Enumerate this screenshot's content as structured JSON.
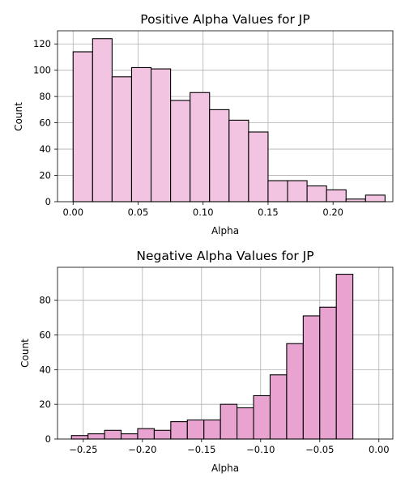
{
  "chart_data": [
    {
      "type": "bar",
      "title": "Positive Alpha Values for JP",
      "xlabel": "Alpha",
      "ylabel": "Count",
      "bar_color": "#f2c4e1",
      "xlim": [
        -0.012,
        0.246
      ],
      "ylim": [
        0,
        130
      ],
      "xticks": [
        0.0,
        0.05,
        0.1,
        0.15,
        0.2
      ],
      "xtick_labels": [
        "0.00",
        "0.05",
        "0.10",
        "0.15",
        "0.20"
      ],
      "yticks": [
        0,
        20,
        40,
        60,
        80,
        100,
        120
      ],
      "ytick_labels": [
        "0",
        "20",
        "40",
        "60",
        "80",
        "100",
        "120"
      ],
      "grid": true,
      "bins": [
        {
          "x0": 0.0,
          "x1": 0.015,
          "value": 114
        },
        {
          "x0": 0.015,
          "x1": 0.03,
          "value": 124
        },
        {
          "x0": 0.03,
          "x1": 0.045,
          "value": 95
        },
        {
          "x0": 0.045,
          "x1": 0.06,
          "value": 102
        },
        {
          "x0": 0.06,
          "x1": 0.075,
          "value": 101
        },
        {
          "x0": 0.075,
          "x1": 0.09,
          "value": 77
        },
        {
          "x0": 0.09,
          "x1": 0.105,
          "value": 83
        },
        {
          "x0": 0.105,
          "x1": 0.12,
          "value": 70
        },
        {
          "x0": 0.12,
          "x1": 0.135,
          "value": 62
        },
        {
          "x0": 0.135,
          "x1": 0.15,
          "value": 53
        },
        {
          "x0": 0.15,
          "x1": 0.165,
          "value": 16
        },
        {
          "x0": 0.165,
          "x1": 0.18,
          "value": 16
        },
        {
          "x0": 0.18,
          "x1": 0.195,
          "value": 12
        },
        {
          "x0": 0.195,
          "x1": 0.21,
          "value": 9
        },
        {
          "x0": 0.21,
          "x1": 0.225,
          "value": 2
        },
        {
          "x0": 0.225,
          "x1": 0.24,
          "value": 5
        }
      ]
    },
    {
      "type": "bar",
      "title": "Negative Alpha Values for JP",
      "xlabel": "Alpha",
      "ylabel": "Count",
      "bar_color": "#e9a3d0",
      "xlim": [
        -0.2718,
        0.0118
      ],
      "ylim": [
        0,
        99
      ],
      "xticks": [
        -0.25,
        -0.2,
        -0.15,
        -0.1,
        -0.05,
        0.0
      ],
      "xtick_labels": [
        "−0.25",
        "−0.20",
        "−0.15",
        "−0.10",
        "−0.05",
        "0.00"
      ],
      "yticks": [
        0,
        20,
        40,
        60,
        80
      ],
      "ytick_labels": [
        "0",
        "20",
        "40",
        "60",
        "80"
      ],
      "grid": true,
      "bins": [
        {
          "x0": -0.26,
          "x1": -0.246,
          "value": 2
        },
        {
          "x0": -0.246,
          "x1": -0.232,
          "value": 3
        },
        {
          "x0": -0.232,
          "x1": -0.218,
          "value": 5
        },
        {
          "x0": -0.218,
          "x1": -0.204,
          "value": 3
        },
        {
          "x0": -0.204,
          "x1": -0.19,
          "value": 6
        },
        {
          "x0": -0.19,
          "x1": -0.176,
          "value": 5
        },
        {
          "x0": -0.176,
          "x1": -0.162,
          "value": 10
        },
        {
          "x0": -0.162,
          "x1": -0.148,
          "value": 11
        },
        {
          "x0": -0.148,
          "x1": -0.134,
          "value": 11
        },
        {
          "x0": -0.134,
          "x1": -0.12,
          "value": 20
        },
        {
          "x0": -0.12,
          "x1": -0.106,
          "value": 18
        },
        {
          "x0": -0.106,
          "x1": -0.092,
          "value": 25
        },
        {
          "x0": -0.092,
          "x1": -0.078,
          "value": 37
        },
        {
          "x0": -0.078,
          "x1": -0.064,
          "value": 55
        },
        {
          "x0": -0.064,
          "x1": -0.05,
          "value": 71
        },
        {
          "x0": -0.05,
          "x1": -0.036,
          "value": 76
        },
        {
          "x0": -0.036,
          "x1": -0.022,
          "value": 95
        }
      ]
    }
  ]
}
